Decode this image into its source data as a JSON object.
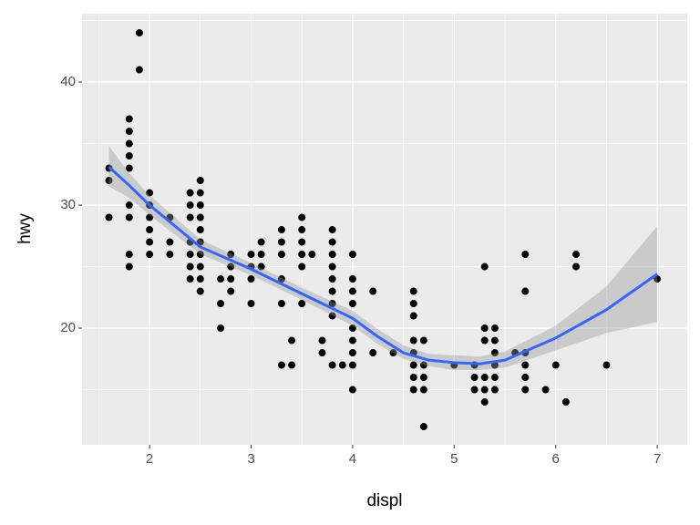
{
  "chart_data": {
    "type": "scatter",
    "x_label": "displ",
    "y_label": "hwy",
    "x": [
      1.6,
      1.6,
      1.6,
      1.8,
      1.8,
      1.8,
      1.8,
      1.8,
      1.8,
      1.8,
      1.8,
      1.8,
      1.9,
      1.9,
      2.0,
      2.0,
      2.0,
      2.0,
      2.0,
      2.0,
      2.2,
      2.2,
      2.2,
      2.4,
      2.4,
      2.4,
      2.4,
      2.4,
      2.4,
      2.4,
      2.5,
      2.5,
      2.5,
      2.5,
      2.5,
      2.5,
      2.5,
      2.5,
      2.5,
      2.5,
      2.7,
      2.7,
      2.7,
      2.8,
      2.8,
      2.8,
      2.8,
      3.0,
      3.0,
      3.0,
      3.0,
      3.1,
      3.1,
      3.1,
      3.3,
      3.3,
      3.3,
      3.3,
      3.3,
      3.3,
      3.4,
      3.4,
      3.5,
      3.5,
      3.5,
      3.5,
      3.5,
      3.5,
      3.6,
      3.7,
      3.7,
      3.8,
      3.8,
      3.8,
      3.8,
      3.8,
      3.8,
      3.8,
      3.8,
      3.8,
      3.9,
      4.0,
      4.0,
      4.0,
      4.0,
      4.0,
      4.0,
      4.0,
      4.0,
      4.0,
      4.2,
      4.2,
      4.4,
      4.6,
      4.6,
      4.6,
      4.6,
      4.6,
      4.6,
      4.6,
      4.6,
      4.7,
      4.7,
      4.7,
      4.7,
      4.7,
      5.0,
      5.2,
      5.2,
      5.2,
      5.3,
      5.3,
      5.3,
      5.3,
      5.3,
      5.3,
      5.4,
      5.4,
      5.4,
      5.4,
      5.4,
      5.4,
      5.6,
      5.7,
      5.7,
      5.7,
      5.7,
      5.7,
      5.7,
      5.9,
      6.0,
      6.1,
      6.2,
      6.2,
      6.5,
      7.0
    ],
    "values": [
      29,
      32,
      33,
      25,
      26,
      29,
      30,
      33,
      34,
      35,
      36,
      37,
      41,
      44,
      26,
      27,
      28,
      29,
      30,
      31,
      26,
      27,
      29,
      24,
      25,
      26,
      27,
      29,
      30,
      31,
      23,
      24,
      25,
      26,
      27,
      28,
      29,
      30,
      31,
      32,
      20,
      22,
      24,
      23,
      24,
      25,
      26,
      22,
      24,
      25,
      26,
      25,
      26,
      27,
      17,
      22,
      24,
      26,
      27,
      28,
      17,
      19,
      22,
      25,
      26,
      27,
      28,
      29,
      26,
      18,
      19,
      17,
      21,
      22,
      23,
      24,
      25,
      26,
      27,
      28,
      17,
      15,
      17,
      18,
      19,
      20,
      22,
      23,
      24,
      26,
      18,
      23,
      18,
      15,
      16,
      17,
      18,
      19,
      21,
      22,
      23,
      12,
      15,
      16,
      17,
      19,
      17,
      15,
      16,
      17,
      14,
      15,
      16,
      19,
      20,
      25,
      15,
      16,
      17,
      18,
      19,
      20,
      18,
      15,
      16,
      17,
      18,
      23,
      26,
      15,
      17,
      14,
      25,
      26,
      17,
      24
    ],
    "color": "#000000",
    "smooth": {
      "color": "#3366ff",
      "x": [
        1.6,
        1.8,
        2.0,
        2.5,
        3.0,
        3.5,
        4.0,
        4.25,
        4.5,
        4.75,
        5.0,
        5.25,
        5.5,
        6.0,
        6.5,
        7.0
      ],
      "values": [
        33.1,
        31.6,
        30.0,
        26.6,
        24.8,
        22.8,
        20.8,
        19.3,
        18.0,
        17.4,
        17.2,
        17.1,
        17.4,
        19.2,
        21.5,
        24.4
      ],
      "lower": [
        31.5,
        30.6,
        29.2,
        26.0,
        24.3,
        22.3,
        20.2,
        18.7,
        17.5,
        16.9,
        16.6,
        16.6,
        16.8,
        18.2,
        19.6,
        20.5
      ],
      "upper": [
        34.8,
        32.6,
        30.8,
        27.2,
        25.3,
        23.3,
        21.4,
        19.9,
        18.6,
        17.9,
        17.8,
        17.7,
        18.1,
        20.2,
        23.4,
        28.3
      ]
    },
    "xlim": [
      1.335,
      7.295
    ],
    "ylim": [
      10.52,
      45.56
    ],
    "xticks": [
      2,
      3,
      4,
      5,
      6,
      7
    ],
    "yticks": [
      20,
      30,
      40
    ],
    "grid": true
  }
}
